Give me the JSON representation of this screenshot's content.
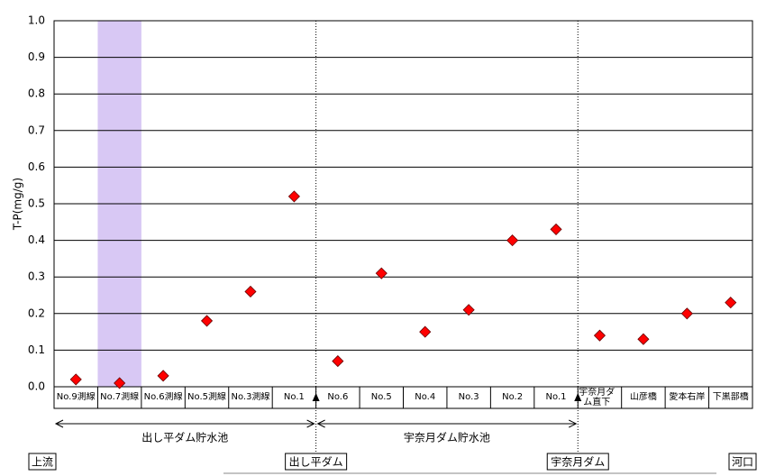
{
  "chart_data": {
    "type": "scatter",
    "y_label": "T-P(mg/g)",
    "categories": [
      "No.9測線",
      "No.7測線",
      "No.6測線",
      "No.5測線",
      "No.3測線",
      "No.1",
      "No.6",
      "No.5",
      "No.4",
      "No.3",
      "No.2",
      "No.1",
      "宇奈月ダム直下",
      "山彦橋",
      "愛本右岸",
      "下黒部橋"
    ],
    "values": [
      0.02,
      0.01,
      0.03,
      0.18,
      0.26,
      0.52,
      0.07,
      0.31,
      0.15,
      0.21,
      0.4,
      0.43,
      0.14,
      0.13,
      0.2,
      0.23
    ],
    "color": "#ff0000",
    "highlight_color": "#d8c8f4",
    "ylim": [
      0,
      1
    ],
    "yticks": [
      {
        "value": 0,
        "label": "0.0"
      },
      0.1,
      0.2,
      0.3,
      0.4,
      0.5,
      0.6,
      0.7,
      0.8,
      0.9,
      {
        "value": 1,
        "label": "1.0"
      }
    ],
    "grid": true,
    "reservoirs": [
      "出し平ダム貯水池",
      "宇奈月ダム貯水池"
    ],
    "dams": [
      "出し平ダム",
      "宇奈月ダム"
    ],
    "upstream": "上流",
    "estuary": "河口"
  }
}
